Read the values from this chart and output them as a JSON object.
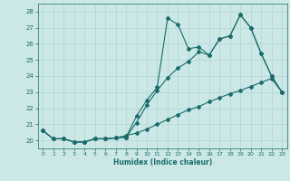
{
  "xlabel": "Humidex (Indice chaleur)",
  "xlim": [
    -0.5,
    23.5
  ],
  "ylim": [
    19.5,
    28.5
  ],
  "xticks": [
    0,
    1,
    2,
    3,
    4,
    5,
    6,
    7,
    8,
    9,
    10,
    11,
    12,
    13,
    14,
    15,
    16,
    17,
    18,
    19,
    20,
    21,
    22,
    23
  ],
  "yticks": [
    20,
    21,
    22,
    23,
    24,
    25,
    26,
    27,
    28
  ],
  "background_color": "#cbe8e7",
  "grid_color": "#b0d4d4",
  "line_color": "#1a6b6b",
  "series1_x": [
    0,
    1,
    2,
    3,
    4,
    5,
    6,
    7,
    8,
    9,
    10,
    11,
    12,
    13,
    14,
    15,
    16,
    17,
    18,
    19,
    20,
    21,
    22,
    23
  ],
  "series1_y": [
    20.6,
    20.1,
    20.1,
    19.9,
    19.9,
    20.1,
    20.1,
    20.15,
    20.2,
    21.1,
    22.2,
    23.1,
    23.9,
    24.5,
    24.9,
    25.5,
    25.3,
    26.3,
    26.5,
    27.8,
    27.0,
    25.4,
    24.0,
    23.0
  ],
  "series2_x": [
    0,
    1,
    2,
    3,
    4,
    5,
    6,
    7,
    8,
    9,
    10,
    11,
    12,
    13,
    14,
    15,
    16,
    17,
    18,
    19,
    20,
    21,
    22,
    23
  ],
  "series2_y": [
    20.6,
    20.1,
    20.1,
    19.9,
    19.9,
    20.1,
    20.1,
    20.15,
    20.2,
    21.5,
    22.5,
    23.3,
    27.6,
    27.2,
    25.7,
    25.8,
    25.3,
    26.3,
    26.5,
    27.8,
    27.0,
    25.4,
    24.0,
    23.0
  ],
  "series3_x": [
    0,
    1,
    2,
    3,
    4,
    5,
    6,
    7,
    8,
    9,
    10,
    11,
    12,
    13,
    14,
    15,
    16,
    17,
    18,
    19,
    20,
    21,
    22,
    23
  ],
  "series3_y": [
    20.6,
    20.1,
    20.1,
    19.9,
    19.9,
    20.1,
    20.1,
    20.15,
    20.3,
    20.45,
    20.7,
    21.0,
    21.3,
    21.6,
    21.9,
    22.1,
    22.4,
    22.65,
    22.9,
    23.1,
    23.35,
    23.6,
    23.85,
    23.0
  ]
}
